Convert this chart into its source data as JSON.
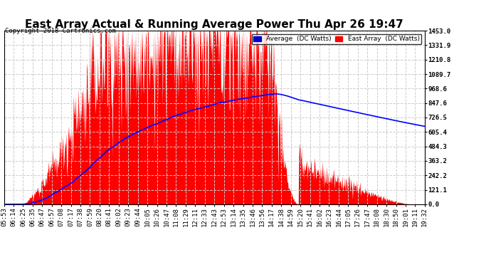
{
  "title": "East Array Actual & Running Average Power Thu Apr 26 19:47",
  "copyright": "Copyright 2018 Cartronics.com",
  "ylabel_right_ticks": [
    0.0,
    121.1,
    242.2,
    363.2,
    484.3,
    605.4,
    726.5,
    847.6,
    968.6,
    1089.7,
    1210.8,
    1331.9,
    1453.0
  ],
  "ymax": 1453.0,
  "ymin": 0.0,
  "bg_color": "#ffffff",
  "plot_bg_color": "#ffffff",
  "grid_color": "#aaaaaa",
  "area_color": "#ff0000",
  "avg_line_color": "#0000ff",
  "title_fontsize": 11,
  "tick_fontsize": 6.5,
  "legend_avg_label": "Average  (DC Watts)",
  "legend_east_label": "East Array  (DC Watts)",
  "x_tick_labels": [
    "05:53",
    "06:14",
    "06:25",
    "06:35",
    "06:47",
    "06:57",
    "07:08",
    "07:17",
    "07:38",
    "07:59",
    "08:20",
    "08:41",
    "09:02",
    "09:23",
    "09:44",
    "10:05",
    "10:26",
    "10:47",
    "11:08",
    "11:29",
    "12:11",
    "12:33",
    "12:43",
    "12:53",
    "13:14",
    "13:35",
    "13:46",
    "13:56",
    "14:17",
    "14:38",
    "14:59",
    "15:20",
    "15:41",
    "16:02",
    "16:23",
    "16:44",
    "17:05",
    "17:26",
    "17:47",
    "18:08",
    "18:30",
    "18:50",
    "19:01",
    "19:11",
    "19:32"
  ]
}
